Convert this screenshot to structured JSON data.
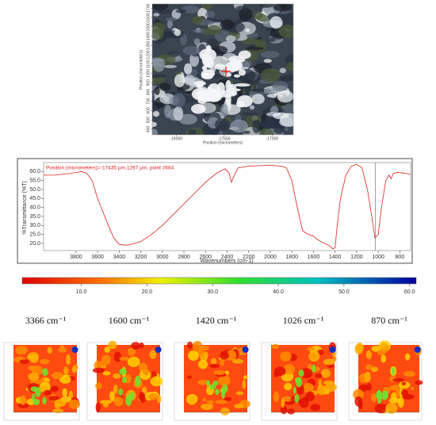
{
  "chart_data": [
    {
      "type": "image",
      "xlabel": "Position (micrometers)",
      "ylabel": "Position (micrometers)",
      "xlim": [
        -18250,
        -16780
      ],
      "xticks": [
        -18000,
        -17500,
        -17000
      ],
      "ylim": [
        340,
        1745
      ],
      "yticks": [
        400,
        500,
        600,
        700,
        800,
        900,
        1000,
        1100,
        1200,
        1300,
        1400,
        1500,
        1600,
        1700
      ]
    },
    {
      "type": "line",
      "annotation": "Position (micrometers)=-17435 µm,1267 µm, point #664",
      "xlabel": "Wavenumbers (cm-1)",
      "ylabel": "%Transmittance (%T)",
      "xlim": [
        4100,
        700
      ],
      "ylim": [
        16,
        65
      ],
      "xticks": [
        3800,
        3600,
        3400,
        3200,
        3000,
        2800,
        2600,
        2400,
        2200,
        2000,
        1800,
        1600,
        1400,
        1200,
        1000,
        800
      ],
      "yticks": [
        {
          "value": 20,
          "label": "20.0"
        },
        {
          "value": 25,
          "label": "25.0"
        },
        {
          "value": 30,
          "label": "30.0"
        },
        {
          "value": 35,
          "label": "35.0"
        },
        {
          "value": 40,
          "label": "40.0"
        },
        {
          "value": 45,
          "label": "45.0"
        },
        {
          "value": 50,
          "label": "50.0"
        },
        {
          "value": 55,
          "label": "55.0"
        },
        {
          "value": 60,
          "label": "60.0"
        }
      ],
      "cursor": 1026,
      "series": [
        {
          "color": "#e02020",
          "x": [
            4100,
            4000,
            3850,
            3800,
            3750,
            3700,
            3650,
            3600,
            3500,
            3450,
            3400,
            3350,
            3300,
            3200,
            3100,
            3000,
            2900,
            2800,
            2700,
            2600,
            2500,
            2420,
            2380,
            2360,
            2340,
            2300,
            2200,
            2000,
            1900,
            1850,
            1800,
            1750,
            1700,
            1650,
            1600,
            1560,
            1500,
            1460,
            1420,
            1400,
            1380,
            1350,
            1300,
            1250,
            1200,
            1150,
            1100,
            1060,
            1030,
            1000,
            970,
            930,
            900,
            880,
            860,
            820,
            750,
            700
          ],
          "values": [
            58,
            58,
            59,
            59.5,
            60,
            59,
            55,
            45,
            30,
            23,
            19.5,
            19,
            19.2,
            21,
            25,
            30,
            36,
            42,
            48,
            54,
            59,
            61.5,
            59,
            54,
            57,
            62,
            63,
            63.5,
            63,
            62,
            55,
            40,
            27,
            25,
            24,
            22,
            20,
            19,
            17,
            17.5,
            30,
            45,
            58,
            63,
            64,
            62,
            50,
            35,
            23,
            25,
            40,
            55,
            58,
            56,
            59,
            59.5,
            59,
            58.5
          ]
        }
      ]
    },
    {
      "type": "colorbar",
      "xlim": [
        1,
        61
      ],
      "xticks": [
        {
          "value": 10,
          "label": "10.0"
        },
        {
          "value": 20,
          "label": "20.0"
        },
        {
          "value": 30,
          "label": "30.0"
        },
        {
          "value": 40,
          "label": "40.0"
        },
        {
          "value": 50,
          "label": "50.0"
        },
        {
          "value": 60,
          "label": "60.0"
        }
      ]
    },
    {
      "type": "heatmaps",
      "labels": [
        "3366 cm⁻¹",
        "1600 cm⁻¹",
        "1420 cm⁻¹",
        "1026 cm⁻¹",
        "870 cm⁻¹"
      ]
    }
  ]
}
